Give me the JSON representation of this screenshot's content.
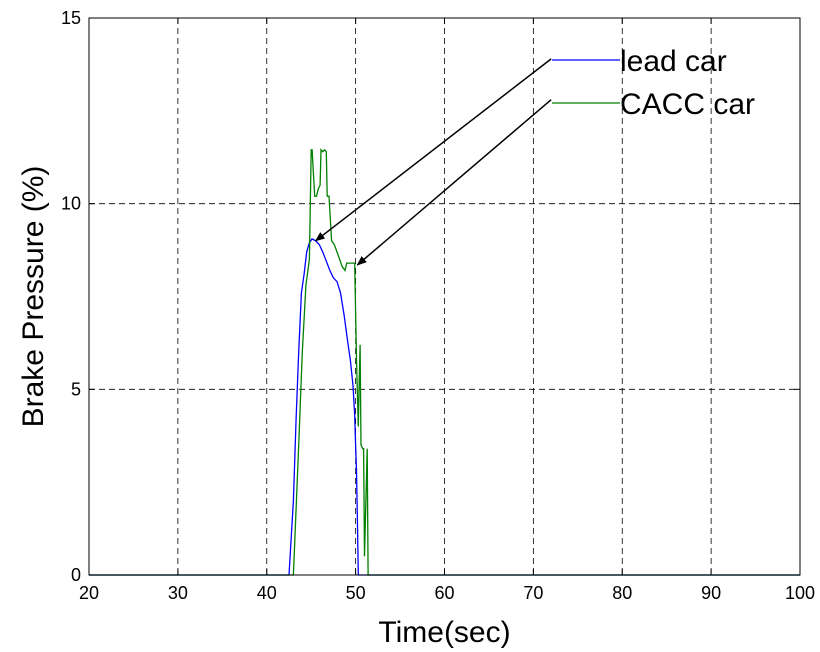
{
  "chart_data": {
    "type": "line",
    "title": "",
    "xlabel": "Time(sec)",
    "ylabel": "Brake Pressure (%)",
    "xlim": [
      20,
      100
    ],
    "ylim": [
      0,
      15
    ],
    "xticks": [
      20,
      30,
      40,
      50,
      60,
      70,
      80,
      90,
      100
    ],
    "yticks": [
      0,
      5,
      10,
      15
    ],
    "grid": true,
    "grid_style": "dashed",
    "legend_position": "top-right",
    "series": [
      {
        "name": "lead car",
        "color": "#0000ff",
        "x": [
          20,
          42.5,
          43.0,
          43.3,
          43.6,
          43.9,
          44.2,
          44.5,
          44.8,
          45.1,
          45.5,
          45.9,
          46.3,
          46.7,
          47.1,
          47.5,
          47.9,
          48.3,
          48.7,
          49.1,
          49.4,
          49.7,
          49.9,
          50.0,
          50.1,
          50.2,
          50.3,
          100
        ],
        "y": [
          0,
          0,
          2.0,
          4.2,
          6.0,
          7.6,
          8.1,
          8.7,
          8.95,
          9.05,
          9.0,
          8.9,
          8.7,
          8.45,
          8.2,
          8.0,
          7.9,
          7.6,
          7.0,
          6.3,
          5.8,
          5.1,
          4.3,
          3.5,
          2.8,
          1.5,
          0,
          0
        ]
      },
      {
        "name": "CACC car",
        "color": "#008000",
        "x": [
          20,
          43.0,
          43.6,
          44.0,
          44.4,
          44.8,
          45.0,
          45.1,
          45.4,
          45.6,
          45.8,
          46.0,
          46.1,
          46.3,
          46.5,
          46.7,
          46.8,
          47.0,
          47.3,
          47.6,
          47.9,
          48.2,
          48.5,
          48.8,
          49.0,
          49.3,
          49.6,
          49.9,
          50.1,
          50.3,
          50.4,
          50.5,
          50.6,
          50.8,
          50.9,
          51.0,
          51.3,
          51.4,
          100
        ],
        "y": [
          0,
          0,
          3.5,
          6.0,
          7.8,
          8.5,
          11.45,
          11.45,
          10.2,
          10.2,
          10.4,
          10.5,
          11.45,
          11.4,
          11.45,
          11.4,
          10.2,
          10.2,
          9.0,
          8.9,
          8.7,
          8.5,
          8.3,
          8.2,
          8.4,
          8.4,
          8.4,
          8.4,
          5.8,
          4.0,
          5.2,
          6.2,
          3.5,
          3.4,
          3.4,
          0.5,
          3.4,
          0,
          0
        ]
      }
    ],
    "annotations": [
      {
        "type": "arrow",
        "from_data": [
          72,
          13.9
        ],
        "to_data": [
          45.5,
          9.0
        ]
      },
      {
        "type": "arrow",
        "from_data": [
          72,
          12.8
        ],
        "to_data": [
          50.2,
          8.35
        ]
      }
    ]
  },
  "legend": {
    "entries": [
      {
        "name": "lead car",
        "color": "#0000ff"
      },
      {
        "name": "CACC car",
        "color": "#008000"
      }
    ]
  }
}
